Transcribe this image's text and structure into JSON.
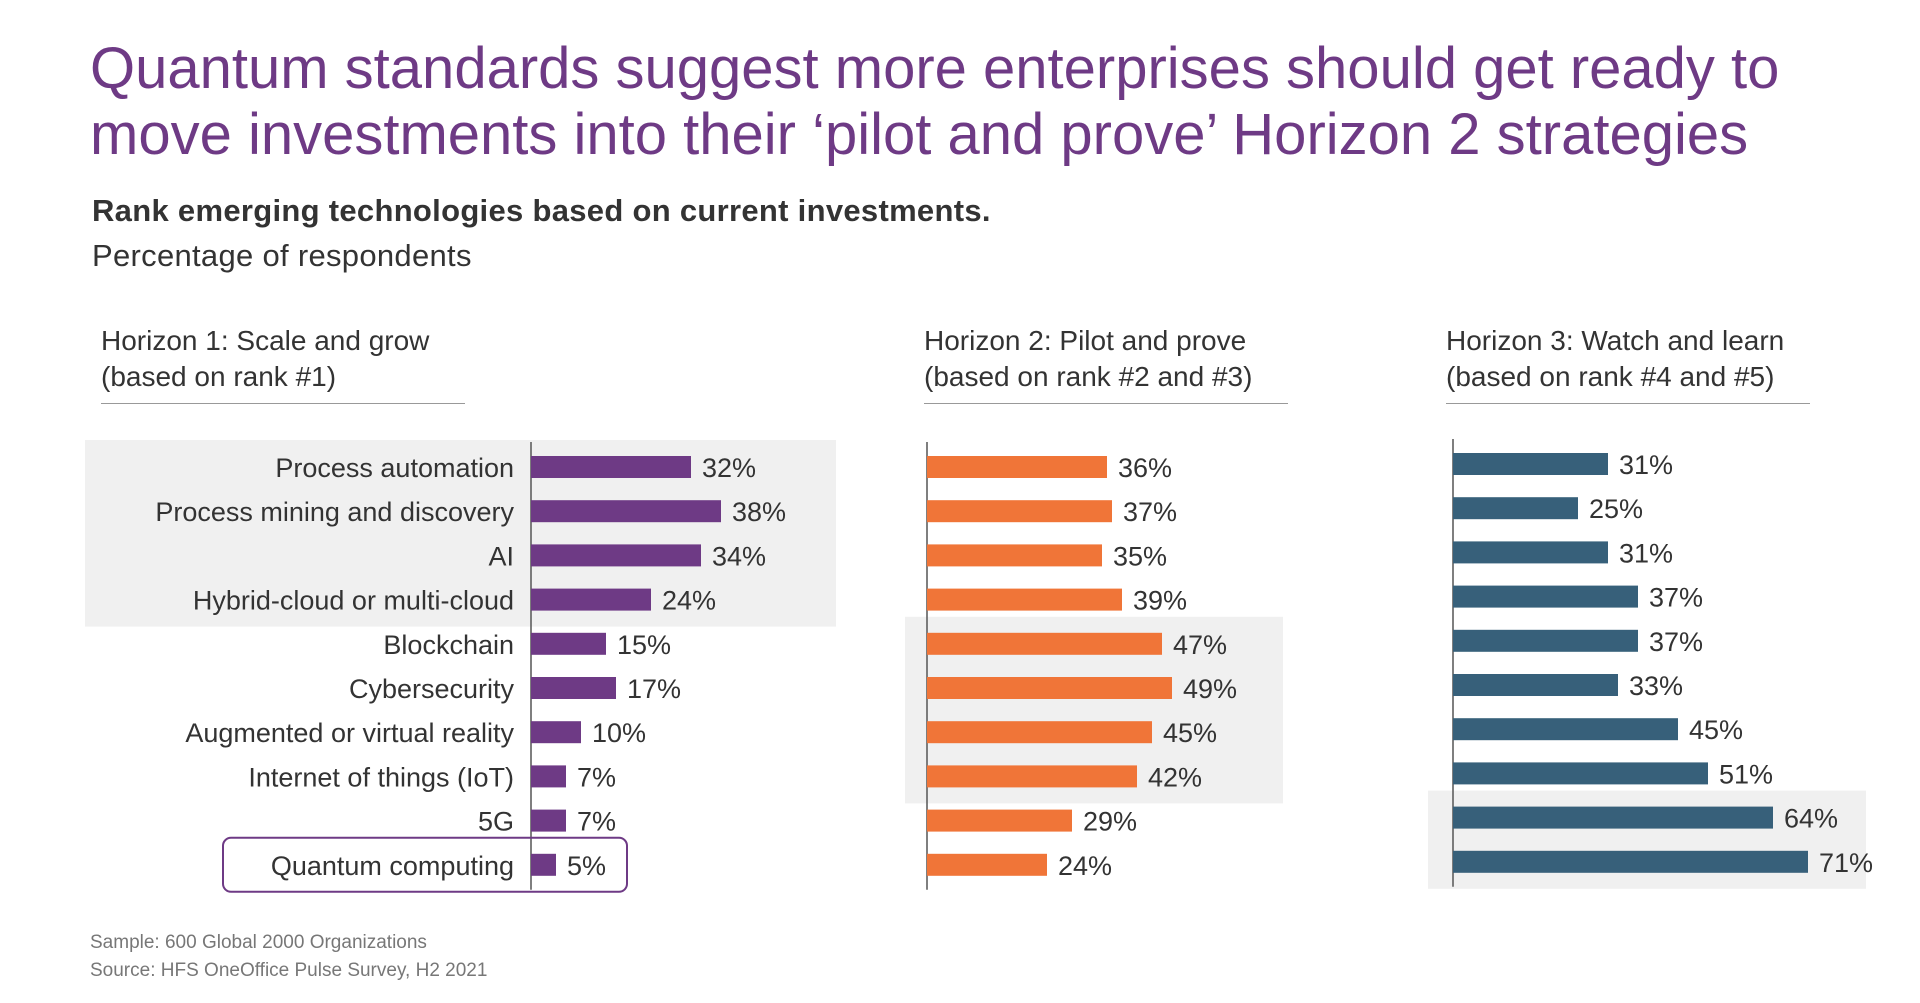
{
  "title_lines": [
    "Quantum standards suggest more enterprises should get ready to",
    "move investments into their ‘pilot and prove’ Horizon 2 strategies"
  ],
  "subtitle": "Rank emerging technologies based on current investments.",
  "subtitle2": "Percentage of respondents",
  "footnotes": {
    "sample": "Sample: 600 Global 2000 Organizations",
    "source": "Source: HFS OneOffice Pulse Survey, H2 2021"
  },
  "colors": {
    "title": "#6E3A85",
    "horizon1": "#6E3A85",
    "horizon2": "#F07538",
    "horizon3": "#37607A",
    "highlight_bg": "#F0F0F0"
  },
  "chart_data": [
    {
      "type": "bar",
      "orientation": "horizontal",
      "title_line1": "Horizon 1: Scale and grow",
      "title_line2": "(based on rank #1)",
      "categories": [
        "Process automation",
        "Process mining and discovery",
        "AI",
        "Hybrid-cloud or multi-cloud",
        "Blockchain",
        "Cybersecurity",
        "Augmented or virtual reality",
        "Internet of things (IoT)",
        "5G",
        "Quantum computing"
      ],
      "values": [
        32,
        38,
        34,
        24,
        15,
        17,
        10,
        7,
        7,
        5
      ],
      "value_labels": [
        "32%",
        "38%",
        "34%",
        "24%",
        "15%",
        "17%",
        "10%",
        "7%",
        "7%",
        "5%"
      ],
      "highlighted_rows": [
        0,
        1,
        2,
        3
      ],
      "boxed_row": 9,
      "color": "#6E3A85"
    },
    {
      "type": "bar",
      "orientation": "horizontal",
      "title_line1": "Horizon 2: Pilot and prove",
      "title_line2": "(based on rank #2 and #3)",
      "values": [
        36,
        37,
        35,
        39,
        47,
        49,
        45,
        42,
        29,
        24
      ],
      "value_labels": [
        "36%",
        "37%",
        "35%",
        "39%",
        "47%",
        "49%",
        "45%",
        "42%",
        "29%",
        "24%"
      ],
      "highlighted_rows": [
        4,
        5,
        6,
        7
      ],
      "color": "#F07538"
    },
    {
      "type": "bar",
      "orientation": "horizontal",
      "title_line1": "Horizon 3: Watch and learn",
      "title_line2": "(based on rank #4 and #5)",
      "values": [
        31,
        25,
        31,
        37,
        37,
        33,
        45,
        51,
        64,
        71
      ],
      "value_labels": [
        "31%",
        "25%",
        "31%",
        "37%",
        "37%",
        "33%",
        "45%",
        "51%",
        "64%",
        "71%"
      ],
      "highlighted_rows": [
        8,
        9
      ],
      "color": "#37607A"
    }
  ]
}
